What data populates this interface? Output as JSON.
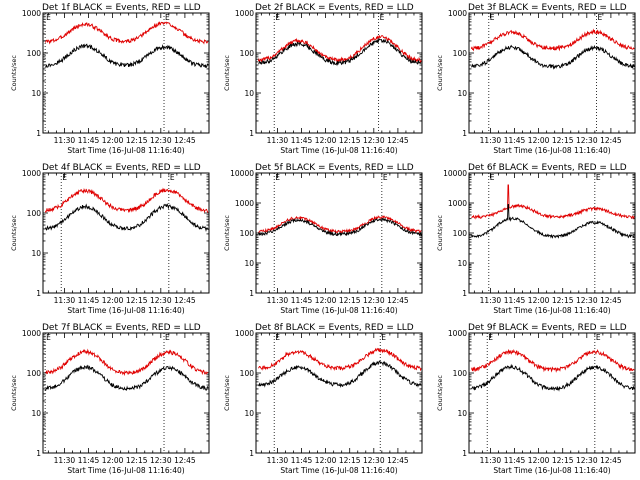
{
  "chart_data": [
    {
      "type": "line",
      "title": "Det 1f BLACK = Events, RED = LLD",
      "xlabel": "Start Time (16-Jul-08 11:16:40)",
      "ylabel": "Counts/sec",
      "yscale": "log",
      "ylim": [
        1,
        1000
      ],
      "y_tick_labels": [
        "1",
        "10",
        "100",
        "1000"
      ],
      "x_tick_labels": [
        "11:30",
        "11:45",
        "12:00",
        "12:15",
        "12:30",
        "12:45"
      ],
      "x_tick_minutes": [
        30,
        45,
        60,
        75,
        90,
        105
      ],
      "xlim_minutes": [
        16.67,
        120
      ],
      "dotted_lines_minutes": [
        18,
        92
      ],
      "markers": [
        "E",
        "E"
      ],
      "series": [
        {
          "color": "#e00000",
          "base": 190,
          "peaks": [
            [
              43,
              520
            ],
            [
              92,
              560
            ]
          ]
        },
        {
          "color": "#000000",
          "base": 48,
          "peaks": [
            [
              43,
              150
            ],
            [
              92,
              140
            ]
          ]
        }
      ]
    },
    {
      "type": "line",
      "title": "Det 2f BLACK = Events, RED = LLD",
      "xlabel": "Start Time (16-Jul-08 11:16:40)",
      "ylabel": "Counts/sec",
      "yscale": "log",
      "ylim": [
        1,
        1000
      ],
      "y_tick_labels": [
        "1",
        "10",
        "100",
        "1000"
      ],
      "x_tick_labels": [
        "11:30",
        "11:45",
        "12:00",
        "12:15",
        "12:30",
        "12:45"
      ],
      "x_tick_minutes": [
        30,
        45,
        60,
        75,
        90,
        105
      ],
      "xlim_minutes": [
        16.67,
        120
      ],
      "dotted_lines_minutes": [
        28,
        93
      ],
      "markers": [
        "E",
        "E"
      ],
      "series": [
        {
          "color": "#e00000",
          "base": 65,
          "peaks": [
            [
              43,
              200
            ],
            [
              94,
              250
            ]
          ]
        },
        {
          "color": "#000000",
          "base": 55,
          "peaks": [
            [
              43,
              170
            ],
            [
              94,
              205
            ]
          ]
        }
      ]
    },
    {
      "type": "line",
      "title": "Det 3f BLACK = Events, RED = LLD",
      "xlabel": "Start Time (16-Jul-08 11:16:40)",
      "ylabel": "Counts/sec",
      "yscale": "log",
      "ylim": [
        1,
        1000
      ],
      "y_tick_labels": [
        "1",
        "10",
        "100",
        "1000"
      ],
      "x_tick_labels": [
        "11:30",
        "11:45",
        "12:00",
        "12:15",
        "12:30",
        "12:45"
      ],
      "x_tick_minutes": [
        30,
        45,
        60,
        75,
        90,
        105
      ],
      "xlim_minutes": [
        16.67,
        120
      ],
      "dotted_lines_minutes": [
        29,
        96
      ],
      "markers": [
        "E",
        "E"
      ],
      "series": [
        {
          "color": "#e00000",
          "base": 130,
          "peaks": [
            [
              43,
              330
            ],
            [
              95,
              340
            ]
          ]
        },
        {
          "color": "#000000",
          "base": 45,
          "peaks": [
            [
              43,
              140
            ],
            [
              95,
              135
            ]
          ]
        }
      ]
    },
    {
      "type": "line",
      "title": "Det 4f BLACK = Events, RED = LLD",
      "xlabel": "Start Time (16-Jul-08 11:16:40)",
      "ylabel": "Counts/sec",
      "yscale": "log",
      "ylim": [
        1,
        1000
      ],
      "y_tick_labels": [
        "1",
        "10",
        "100",
        "1000"
      ],
      "x_tick_labels": [
        "11:30",
        "11:45",
        "12:00",
        "12:15",
        "12:30",
        "12:45"
      ],
      "x_tick_minutes": [
        30,
        45,
        60,
        75,
        90,
        105
      ],
      "xlim_minutes": [
        16.67,
        120
      ],
      "dotted_lines_minutes": [
        28,
        95
      ],
      "markers": [
        "E",
        "E"
      ],
      "series": [
        {
          "color": "#e00000",
          "base": 115,
          "peaks": [
            [
              43,
              360
            ],
            [
              94,
              380
            ]
          ]
        },
        {
          "color": "#000000",
          "base": 40,
          "peaks": [
            [
              43,
              145
            ],
            [
              94,
              150
            ]
          ]
        }
      ]
    },
    {
      "type": "line",
      "title": "Det 5f BLACK = Events, RED = LLD",
      "xlabel": "Start Time (16-Jul-08 11:16:40)",
      "ylabel": "Counts/sec",
      "yscale": "log",
      "ylim": [
        1,
        10000
      ],
      "y_tick_labels": [
        "1",
        "10",
        "100",
        "1000",
        "10000"
      ],
      "x_tick_labels": [
        "11:30",
        "11:45",
        "12:00",
        "12:15",
        "12:30",
        "12:45"
      ],
      "x_tick_minutes": [
        30,
        45,
        60,
        75,
        90,
        105
      ],
      "xlim_minutes": [
        16.67,
        120
      ],
      "dotted_lines_minutes": [
        28,
        95
      ],
      "markers": [
        "E",
        "E"
      ],
      "series": [
        {
          "color": "#e00000",
          "base": 110,
          "peaks": [
            [
              43,
              330
            ],
            [
              95,
              340
            ]
          ]
        },
        {
          "color": "#000000",
          "base": 90,
          "peaks": [
            [
              43,
              270
            ],
            [
              95,
              280
            ]
          ]
        }
      ]
    },
    {
      "type": "line",
      "title": "Det 6f BLACK = Events, RED = LLD",
      "xlabel": "Start Time (16-Jul-08 11:16:40)",
      "ylabel": "Counts/sec",
      "yscale": "log",
      "ylim": [
        1,
        10000
      ],
      "y_tick_labels": [
        "1",
        "10",
        "100",
        "1000",
        "10000"
      ],
      "x_tick_labels": [
        "11:30",
        "11:45",
        "12:00",
        "12:15",
        "12:30",
        "12:45"
      ],
      "x_tick_minutes": [
        30,
        45,
        60,
        75,
        90,
        105
      ],
      "xlim_minutes": [
        16.67,
        120
      ],
      "dotted_lines_minutes": [
        29,
        95
      ],
      "markers": [
        "E",
        "E"
      ],
      "series": [
        {
          "color": "#e00000",
          "base": 340,
          "peaks": [
            [
              47,
              800
            ],
            [
              95,
              650
            ]
          ],
          "spike": [
            41,
            4000
          ]
        },
        {
          "color": "#000000",
          "base": 75,
          "peaks": [
            [
              44,
              300
            ],
            [
              95,
              230
            ]
          ],
          "spike": [
            41,
            900
          ]
        }
      ]
    },
    {
      "type": "line",
      "title": "Det 7f BLACK = Events, RED = LLD",
      "xlabel": "Start Time (16-Jul-08 11:16:40)",
      "ylabel": "Counts/sec",
      "yscale": "log",
      "ylim": [
        1,
        1000
      ],
      "y_tick_labels": [
        "1",
        "10",
        "100",
        "1000"
      ],
      "x_tick_labels": [
        "11:30",
        "11:45",
        "12:00",
        "12:15",
        "12:30",
        "12:45"
      ],
      "x_tick_minutes": [
        30,
        45,
        60,
        75,
        90,
        105
      ],
      "xlim_minutes": [
        16.67,
        120
      ],
      "dotted_lines_minutes": [
        18,
        92
      ],
      "markers": [
        "E",
        "E"
      ],
      "series": [
        {
          "color": "#e00000",
          "base": 100,
          "peaks": [
            [
              43,
              340
            ],
            [
              95,
              330
            ]
          ]
        },
        {
          "color": "#000000",
          "base": 40,
          "peaks": [
            [
              43,
              140
            ],
            [
              95,
              135
            ]
          ]
        }
      ]
    },
    {
      "type": "line",
      "title": "Det 8f BLACK = Events, RED = LLD",
      "xlabel": "Start Time (16-Jul-08 11:16:40)",
      "ylabel": "Counts/sec",
      "yscale": "log",
      "ylim": [
        1,
        1000
      ],
      "y_tick_labels": [
        "1",
        "10",
        "100",
        "1000"
      ],
      "x_tick_labels": [
        "11:30",
        "11:45",
        "12:00",
        "12:15",
        "12:30",
        "12:45"
      ],
      "x_tick_minutes": [
        30,
        45,
        60,
        75,
        90,
        105
      ],
      "xlim_minutes": [
        16.67,
        120
      ],
      "dotted_lines_minutes": [
        28,
        94
      ],
      "markers": [
        "E",
        "E"
      ],
      "series": [
        {
          "color": "#e00000",
          "base": 130,
          "peaks": [
            [
              43,
              330
            ],
            [
              94,
              380
            ]
          ],
          "step": [
            35,
            300
          ]
        },
        {
          "color": "#000000",
          "base": 50,
          "peaks": [
            [
              43,
              140
            ],
            [
              94,
              180
            ]
          ]
        }
      ]
    },
    {
      "type": "line",
      "title": "Det 9f BLACK = Events, RED = LLD",
      "xlabel": "Start Time (16-Jul-08 11:16:40)",
      "ylabel": "Counts/sec",
      "yscale": "log",
      "ylim": [
        1,
        1000
      ],
      "y_tick_labels": [
        "1",
        "10",
        "100",
        "1000"
      ],
      "x_tick_labels": [
        "11:30",
        "11:45",
        "12:00",
        "12:15",
        "12:30",
        "12:45"
      ],
      "x_tick_minutes": [
        30,
        45,
        60,
        75,
        90,
        105
      ],
      "xlim_minutes": [
        16.67,
        120
      ],
      "dotted_lines_minutes": [
        28,
        95
      ],
      "markers": [
        "E",
        "E"
      ],
      "series": [
        {
          "color": "#e00000",
          "base": 120,
          "peaks": [
            [
              43,
              340
            ],
            [
              95,
              340
            ]
          ]
        },
        {
          "color": "#000000",
          "base": 40,
          "peaks": [
            [
              43,
              140
            ],
            [
              95,
              140
            ]
          ]
        }
      ]
    }
  ]
}
